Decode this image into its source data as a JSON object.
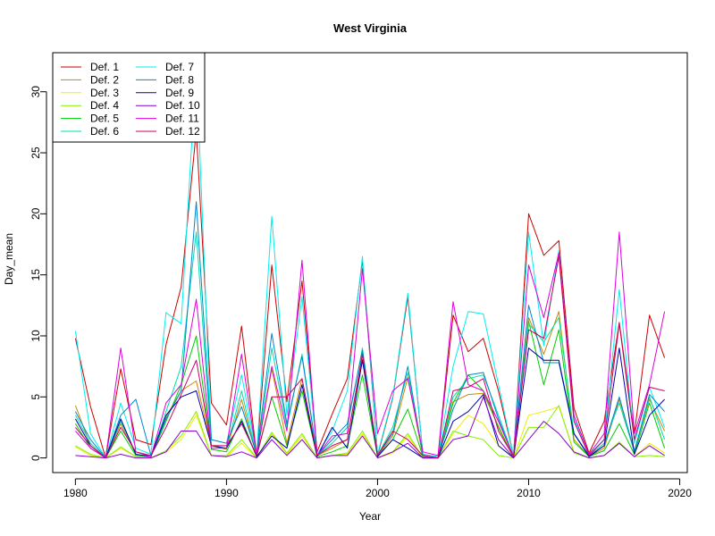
{
  "chart_data": {
    "type": "line",
    "title": "West Virginia",
    "xlabel": "Year",
    "ylabel": "Day_mean",
    "xlim": [
      1978.5,
      2020.5
    ],
    "ylim": [
      -1.2,
      33.2
    ],
    "xticks": [
      1980,
      1990,
      2000,
      2010,
      2020
    ],
    "yticks": [
      0,
      5,
      10,
      15,
      20,
      25,
      30
    ],
    "legend_position": "top-left",
    "legend_columns": 2,
    "grid": false,
    "x": [
      1980,
      1981,
      1982,
      1983,
      1984,
      1985,
      1986,
      1987,
      1988,
      1989,
      1990,
      1991,
      1992,
      1993,
      1994,
      1995,
      1996,
      1997,
      1998,
      1999,
      2000,
      2001,
      2002,
      2003,
      2004,
      2005,
      2006,
      2007,
      2008,
      2009,
      2010,
      2011,
      2012,
      2013,
      2014,
      2015,
      2016,
      2017,
      2018,
      2019
    ],
    "series": [
      {
        "name": "Def. 1",
        "color": "#CC0000",
        "values": [
          9.8,
          4.2,
          0,
          7.3,
          1.5,
          1.1,
          9.3,
          14.0,
          26.8,
          4.5,
          2.7,
          10.8,
          0.2,
          15.8,
          4.6,
          14.5,
          0.5,
          3.6,
          6.5,
          16.2,
          0.2,
          4.9,
          13.2,
          0.3,
          0.1,
          11.7,
          8.7,
          9.8,
          5.5,
          0.2,
          20.0,
          16.6,
          17.8,
          4.1,
          0.4,
          3.0,
          11.1,
          2.0,
          11.7,
          8.2
        ]
      },
      {
        "name": "Def. 2",
        "color": "#CC8800",
        "values": [
          4.3,
          1.0,
          0,
          2.8,
          0.3,
          0.1,
          3.4,
          5.5,
          6.3,
          1.0,
          0.7,
          4.8,
          0.1,
          7.3,
          1.2,
          6.5,
          0.2,
          0.8,
          1.5,
          8.2,
          0.1,
          1.8,
          6.6,
          0.1,
          0,
          4.6,
          5.2,
          5.3,
          2.6,
          0,
          11.5,
          8.5,
          12.0,
          1.5,
          0.1,
          0.8,
          4.8,
          0.6,
          4.8,
          2.2
        ]
      },
      {
        "name": "Def. 3",
        "color": "#EEEE00",
        "values": [
          0.9,
          0.2,
          0,
          0.8,
          0.1,
          0,
          0.5,
          1.5,
          3.5,
          0.2,
          0.1,
          1.2,
          0,
          2.0,
          0.3,
          1.8,
          0,
          0.2,
          0.3,
          2.0,
          0,
          0.4,
          1.8,
          0,
          0,
          2.0,
          3.5,
          2.8,
          1.0,
          0,
          3.5,
          3.8,
          4.2,
          0.5,
          0,
          0.2,
          1.2,
          0.1,
          1.2,
          0.4
        ]
      },
      {
        "name": "Def. 4",
        "color": "#88EE00",
        "values": [
          1.0,
          0.3,
          0,
          0.9,
          0.1,
          0,
          0.6,
          1.8,
          3.8,
          0.2,
          0.2,
          1.5,
          0,
          2.1,
          0.4,
          2.0,
          0,
          0.2,
          0.4,
          2.2,
          0,
          0.5,
          2.0,
          0,
          0,
          2.2,
          1.8,
          1.5,
          0.2,
          0,
          2.5,
          2.5,
          4.3,
          0.4,
          0,
          0.2,
          1.3,
          0.1,
          0.2,
          0.1
        ]
      },
      {
        "name": "Def. 5",
        "color": "#00CC00",
        "values": [
          2.8,
          0.8,
          0,
          2.2,
          0.2,
          0.1,
          3.0,
          6.0,
          10.0,
          0.7,
          0.5,
          3.2,
          0.1,
          5.0,
          1.0,
          5.5,
          0.1,
          0.5,
          1.0,
          6.8,
          0.1,
          1.5,
          4.0,
          0.1,
          0,
          4.5,
          6.8,
          5.5,
          2.5,
          0,
          11.2,
          6.0,
          10.5,
          1.3,
          0.1,
          0.6,
          2.8,
          0.3,
          4.5,
          0.8
        ]
      },
      {
        "name": "Def. 6",
        "color": "#00DDAA",
        "values": [
          3.5,
          1.2,
          0,
          3.0,
          0.3,
          0.1,
          3.8,
          7.5,
          18.5,
          1.0,
          0.8,
          5.5,
          0.2,
          9.0,
          2.5,
          8.5,
          0.2,
          1.2,
          2.5,
          9.0,
          0.2,
          2.5,
          7.0,
          0.2,
          0,
          5.0,
          6.5,
          6.8,
          3.5,
          0.1,
          11.0,
          9.5,
          11.5,
          2.0,
          0.2,
          1.2,
          4.5,
          0.5,
          5.0,
          1.5
        ]
      },
      {
        "name": "Def. 7",
        "color": "#00EEEE",
        "values": [
          10.4,
          2.0,
          0,
          4.5,
          0.8,
          0.3,
          11.9,
          11.0,
          32.2,
          1.5,
          1.2,
          6.8,
          0.3,
          19.8,
          3.5,
          13.2,
          0.3,
          2.2,
          5.5,
          16.5,
          0.3,
          5.0,
          13.5,
          0.3,
          0.1,
          7.5,
          12.0,
          11.8,
          6.0,
          0.2,
          18.5,
          9.2,
          17.0,
          3.2,
          0.3,
          1.5,
          13.8,
          1.2,
          5.8,
          2.5
        ]
      },
      {
        "name": "Def. 8",
        "color": "#0088CC",
        "values": [
          3.8,
          1.5,
          0,
          3.5,
          4.8,
          0.2,
          3.2,
          5.5,
          21.0,
          1.5,
          1.2,
          4.2,
          0.3,
          10.2,
          2.8,
          8.3,
          0.2,
          1.5,
          2.8,
          8.8,
          0.2,
          2.0,
          7.5,
          0.2,
          0,
          4.0,
          6.8,
          7.0,
          3.2,
          0.1,
          12.5,
          7.8,
          7.8,
          2.0,
          0.2,
          1.0,
          5.0,
          0.5,
          5.2,
          3.8
        ]
      },
      {
        "name": "Def. 9",
        "color": "#0000AA",
        "values": [
          3.2,
          1.0,
          0,
          3.2,
          0.3,
          0.1,
          3.5,
          5.0,
          5.5,
          1.0,
          0.8,
          3.0,
          0.1,
          1.8,
          0.8,
          6.0,
          0.1,
          2.5,
          0.8,
          8.0,
          0.1,
          1.5,
          0.8,
          0,
          0,
          3.0,
          3.8,
          5.2,
          1.0,
          0,
          9.0,
          8.0,
          8.0,
          2.0,
          0.1,
          1.0,
          9.0,
          0.3,
          3.5,
          4.8
        ]
      },
      {
        "name": "Def. 10",
        "color": "#8800CC",
        "values": [
          0.2,
          0.1,
          0,
          0.3,
          0,
          0,
          0.5,
          2.2,
          2.2,
          0.2,
          0.1,
          0.5,
          0,
          1.5,
          0.2,
          1.5,
          0,
          0.2,
          0.2,
          1.8,
          0,
          0.5,
          1.2,
          0,
          0,
          1.5,
          1.8,
          5.0,
          1.5,
          0,
          1.5,
          3.0,
          2.0,
          0.5,
          0,
          0.2,
          1.2,
          0.1,
          1.0,
          0.2
        ]
      },
      {
        "name": "Def. 11",
        "color": "#DD00DD",
        "values": [
          2.2,
          0.8,
          0,
          9.0,
          0.5,
          0.1,
          4.5,
          6.0,
          13.0,
          0.8,
          0.8,
          8.5,
          0.2,
          7.5,
          2.2,
          16.2,
          0.2,
          1.8,
          2.0,
          15.5,
          2.0,
          5.5,
          6.5,
          0.5,
          0.2,
          12.8,
          6.0,
          5.5,
          3.0,
          0.1,
          15.8,
          11.5,
          16.8,
          3.5,
          0.3,
          2.0,
          18.5,
          2.0,
          6.0,
          12.0
        ]
      },
      {
        "name": "Def. 12",
        "color": "#CC0066",
        "values": [
          2.5,
          1.0,
          0,
          2.5,
          0.5,
          0.2,
          2.5,
          5.2,
          8.0,
          1.0,
          1.0,
          2.8,
          0.2,
          5.0,
          5.0,
          6.5,
          0.2,
          1.0,
          1.5,
          8.5,
          0.2,
          2.2,
          1.5,
          0.2,
          0,
          5.5,
          5.8,
          6.5,
          2.2,
          0.1,
          10.5,
          9.8,
          16.5,
          3.0,
          0.2,
          1.5,
          11.0,
          1.5,
          5.8,
          5.5
        ]
      }
    ]
  }
}
